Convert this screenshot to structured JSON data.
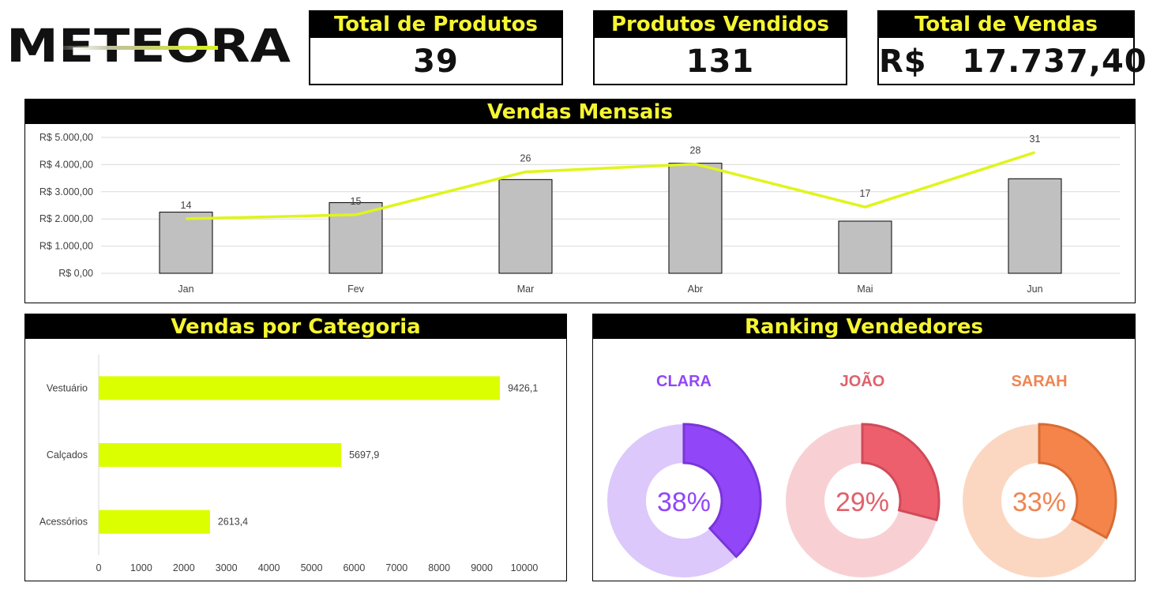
{
  "brand": {
    "logo_text": "METEORA"
  },
  "kpis": [
    {
      "title": "Total de Produtos",
      "value": "39"
    },
    {
      "title": "Produtos Vendidos",
      "value": "131"
    },
    {
      "title": "Total de Vendas",
      "value": "R$   17.737,40"
    }
  ],
  "monthly": {
    "title": "Vendas Mensais"
  },
  "category": {
    "title": "Vendas por Categoria"
  },
  "ranking": {
    "title": "Ranking Vendedores",
    "sellers": [
      {
        "name": "CLARA",
        "label": "38%",
        "value": 0.38,
        "color": "#9147f7",
        "light": "#dcc8fb",
        "edge": "#7a35d8",
        "textColor": "#9147f7"
      },
      {
        "name": "JOÃO",
        "label": "29%",
        "value": 0.29,
        "color": "#ee5f6e",
        "light": "#f8d0d4",
        "edge": "#cf4b59",
        "textColor": "#e0616c"
      },
      {
        "name": "SARAH",
        "label": "33%",
        "value": 0.33,
        "color": "#f5844a",
        "light": "#fbd7c1",
        "edge": "#d86c35",
        "textColor": "#ef8552"
      }
    ]
  },
  "chart_data": [
    {
      "type": "bar",
      "title": "Vendas Mensais",
      "categories": [
        "Jan",
        "Fev",
        "Mar",
        "Abr",
        "Mai",
        "Jun"
      ],
      "series": [
        {
          "type": "bar",
          "values": [
            2250,
            2600,
            3450,
            4050,
            1920,
            3480
          ],
          "color": "#c0c0c0"
        },
        {
          "type": "line",
          "values": [
            14,
            15,
            26,
            28,
            17,
            31
          ],
          "color": "#dff51a"
        }
      ],
      "y_ticks": [
        "R$ 0,00",
        "R$ 1.000,00",
        "R$ 2.000,00",
        "R$ 3.000,00",
        "R$ 4.000,00",
        "R$ 5.000,00"
      ],
      "ylim": [
        0,
        5000
      ],
      "grid": true
    },
    {
      "type": "bar",
      "orientation": "horizontal",
      "title": "Vendas por Categoria",
      "categories": [
        "Vestuário",
        "Calçados",
        "Acessórios"
      ],
      "values": [
        9426.1,
        5697.9,
        2613.4
      ],
      "value_labels": [
        "9426,1",
        "5697,9",
        "2613,4"
      ],
      "x_ticks": [
        "0",
        "1000",
        "2000",
        "3000",
        "4000",
        "5000",
        "6000",
        "7000",
        "8000",
        "9000",
        "10000"
      ],
      "xlim": [
        0,
        10000
      ],
      "color": "#dcff00"
    }
  ]
}
